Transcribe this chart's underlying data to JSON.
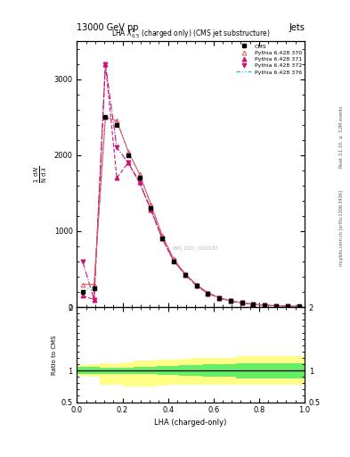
{
  "title_left": "13000 GeV pp",
  "title_right": "Jets",
  "main_title": "LHA $\\lambda^{1}_{0.5}$ (charged only) (CMS jet substructure)",
  "ylabel_parts": [
    "1",
    "mathrm{N}",
    "mathrm{d}N",
    "mathrm{d}\\,\\mathrm{lambda}"
  ],
  "xlabel": "LHA (charged-only)",
  "ratio_ylabel": "Ratio to CMS",
  "right_label_top": "Rivet 3.1.10, $\\geq$ 3.2M events",
  "right_label_bot": "mcplots.cern.ch [arXiv:1306.3436]",
  "watermark": "CMS_2021_I1920187",
  "x_bins": [
    0.0,
    0.05,
    0.1,
    0.15,
    0.2,
    0.25,
    0.3,
    0.35,
    0.4,
    0.45,
    0.5,
    0.55,
    0.6,
    0.65,
    0.7,
    0.75,
    0.8,
    0.85,
    0.9,
    0.95,
    1.0
  ],
  "cms_y": [
    200,
    250,
    2500,
    2400,
    2000,
    1700,
    1300,
    900,
    600,
    420,
    280,
    180,
    120,
    80,
    55,
    38,
    25,
    18,
    12,
    8
  ],
  "py370_y": [
    300,
    300,
    2500,
    2450,
    2050,
    1750,
    1350,
    940,
    630,
    440,
    295,
    190,
    125,
    83,
    57,
    39,
    26,
    18,
    12,
    8
  ],
  "py371_y": [
    150,
    100,
    3200,
    1700,
    1900,
    1640,
    1280,
    900,
    610,
    430,
    285,
    183,
    122,
    81,
    55,
    38,
    25,
    17,
    11,
    7
  ],
  "py372_y": [
    600,
    100,
    3200,
    2100,
    1900,
    1640,
    1280,
    900,
    610,
    430,
    285,
    183,
    122,
    81,
    55,
    38,
    25,
    17,
    11,
    7
  ],
  "py376_y": [
    200,
    300,
    2500,
    2450,
    2050,
    1750,
    1350,
    940,
    630,
    440,
    295,
    190,
    125,
    83,
    57,
    39,
    26,
    18,
    12,
    8
  ],
  "cms_color": "#000000",
  "py370_color": "#e06060",
  "py371_color": "#cc1177",
  "py372_color": "#cc1177",
  "py376_color": "#00bbbb",
  "ratio_green_upper": [
    1.06,
    1.06,
    1.05,
    1.05,
    1.05,
    1.06,
    1.06,
    1.07,
    1.07,
    1.08,
    1.09,
    1.1,
    1.1,
    1.1,
    1.12,
    1.12,
    1.12,
    1.12,
    1.12,
    1.12
  ],
  "ratio_green_lower": [
    0.94,
    0.94,
    0.95,
    0.95,
    0.95,
    0.94,
    0.94,
    0.93,
    0.93,
    0.92,
    0.91,
    0.9,
    0.9,
    0.9,
    0.88,
    0.88,
    0.88,
    0.88,
    0.88,
    0.88
  ],
  "ratio_yellow_upper": [
    1.08,
    1.1,
    1.12,
    1.12,
    1.13,
    1.15,
    1.16,
    1.17,
    1.17,
    1.18,
    1.2,
    1.2,
    1.2,
    1.2,
    1.22,
    1.22,
    1.22,
    1.22,
    1.22,
    1.22
  ],
  "ratio_yellow_lower": [
    0.92,
    0.9,
    0.78,
    0.78,
    0.75,
    0.75,
    0.75,
    0.76,
    0.78,
    0.78,
    0.78,
    0.78,
    0.78,
    0.78,
    0.78,
    0.78,
    0.78,
    0.78,
    0.78,
    0.78
  ],
  "ylim_main": [
    0,
    3500
  ],
  "yticks_main": [
    0,
    1000,
    2000,
    3000
  ],
  "ylim_ratio": [
    0.5,
    2.0
  ],
  "background_color": "#ffffff"
}
